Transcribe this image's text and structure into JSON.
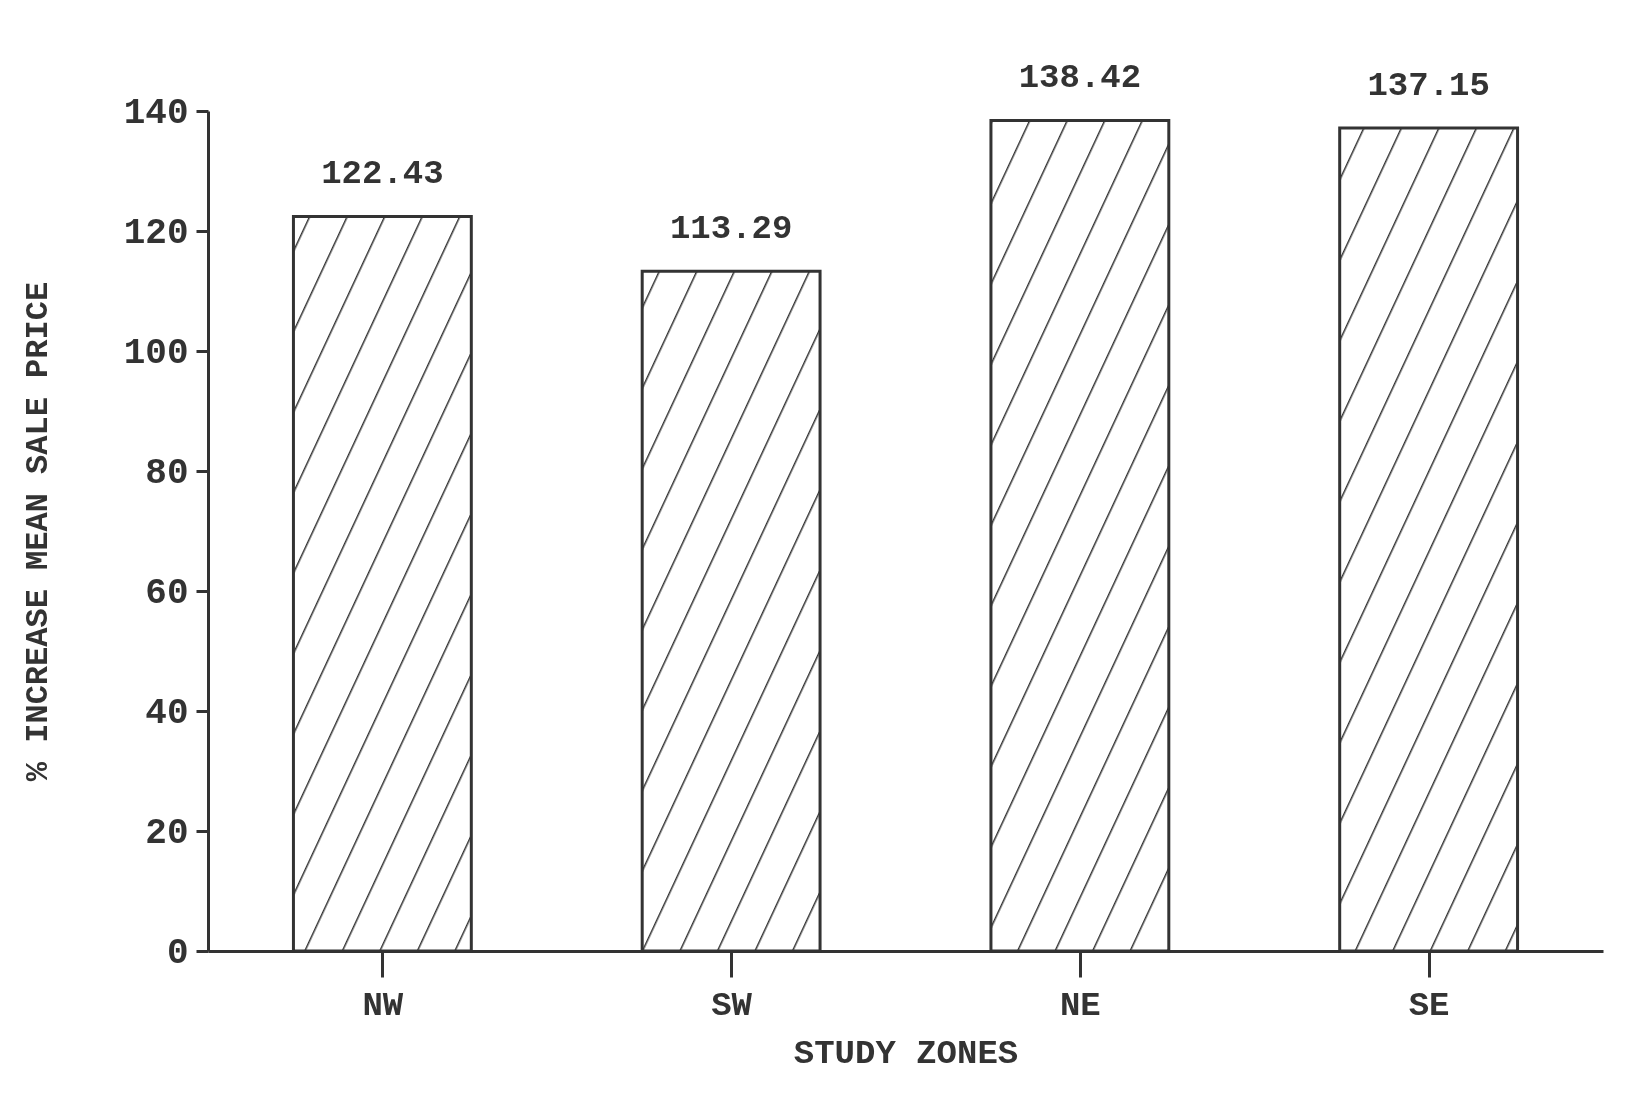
{
  "chart_data": {
    "type": "bar",
    "xlabel": "STUDY ZONES",
    "ylabel": "% INCREASE MEAN SALE PRICE",
    "categories": [
      "NW",
      "SW",
      "NE",
      "SE"
    ],
    "values": [
      122.43,
      113.29,
      138.42,
      137.15
    ],
    "color": "#333333",
    "ylim": [
      0,
      140
    ],
    "yticks": [
      0,
      20,
      40,
      60,
      80,
      100,
      120,
      140
    ],
    "data_labels": true
  }
}
